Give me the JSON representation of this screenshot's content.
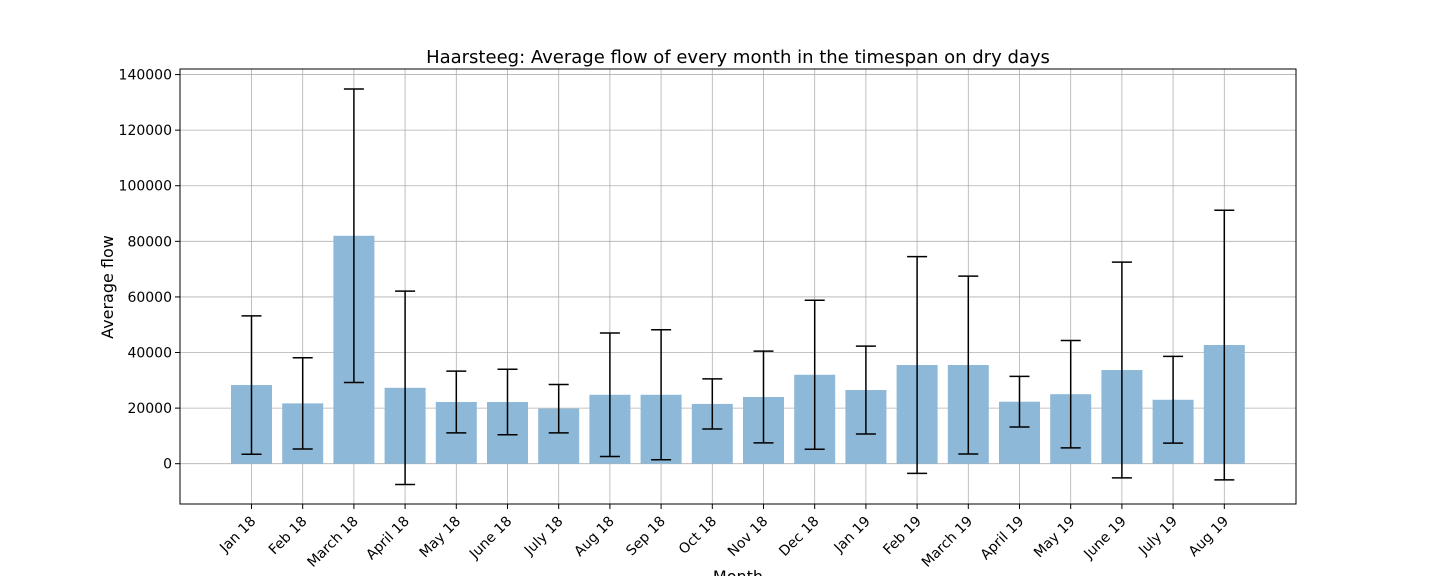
{
  "chart_data": {
    "type": "bar",
    "title": "Haarsteeg: Average flow of every month in the timespan on dry days",
    "xlabel": "Month",
    "ylabel": "Average flow",
    "ylim": [
      -14500,
      142000
    ],
    "yticks": [
      0,
      20000,
      40000,
      60000,
      80000,
      100000,
      120000,
      140000
    ],
    "grid": true,
    "bar_color": "#8db8d8",
    "errorbar_color": "#000000",
    "categories": [
      "Jan 18",
      "Feb 18",
      "March 18",
      "April 18",
      "May 18",
      "June 18",
      "July 18",
      "Aug 18",
      "Sep 18",
      "Oct 18",
      "Nov 18",
      "Dec 18",
      "Jan 19",
      "Feb 19",
      "March 19",
      "April 19",
      "May 19",
      "June 19",
      "July 19",
      "Aug 19"
    ],
    "values": [
      28300,
      21700,
      82000,
      27300,
      22200,
      22200,
      19800,
      24800,
      24800,
      21500,
      24000,
      32000,
      26500,
      35500,
      35500,
      22300,
      25000,
      33700,
      23000,
      42700
    ],
    "errors": [
      24900,
      16400,
      52800,
      34800,
      11100,
      11800,
      8700,
      22200,
      23400,
      9000,
      16500,
      26800,
      15800,
      39000,
      32000,
      9100,
      19300,
      38800,
      15600,
      48500
    ]
  }
}
